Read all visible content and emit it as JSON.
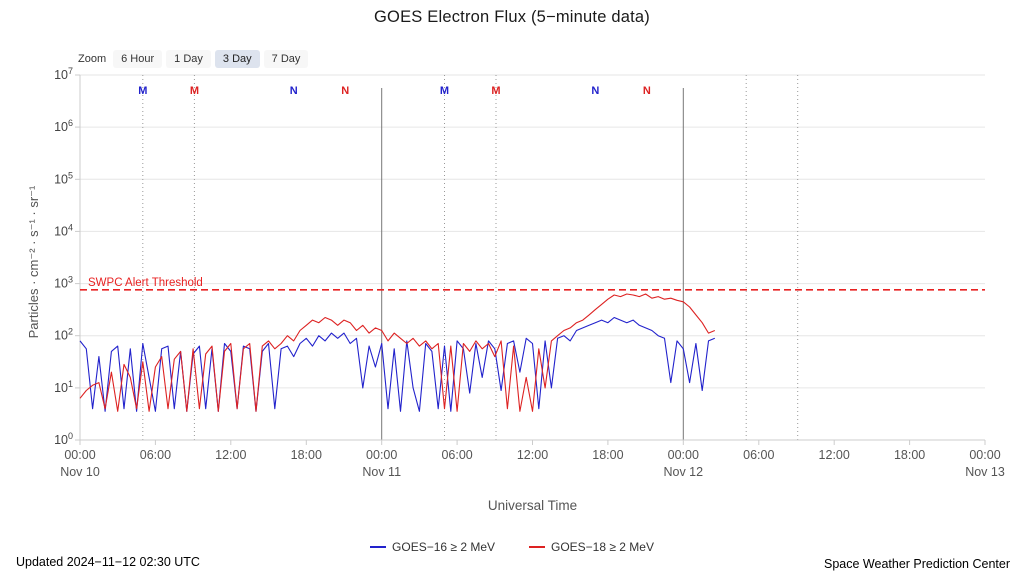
{
  "title": "GOES Electron Flux (5−minute data)",
  "zoom": {
    "label": "Zoom",
    "buttons": [
      {
        "label": "6 Hour",
        "active": false
      },
      {
        "label": "1 Day",
        "active": false
      },
      {
        "label": "3 Day",
        "active": true
      },
      {
        "label": "7 Day",
        "active": false
      }
    ]
  },
  "footer": {
    "updated": "Updated 2024−11−12 02:30 UTC",
    "source": "Space Weather Prediction Center"
  },
  "chart_data": {
    "type": "line",
    "title": "GOES Electron Flux (5−minute data)",
    "x_axis": {
      "label": "Universal Time",
      "unit": "hours since Nov 10 00:00 UTC",
      "range": [
        0,
        72
      ],
      "tick_interval_hours": 6,
      "tick_labels": [
        "00:00",
        "06:00",
        "12:00",
        "18:00",
        "00:00",
        "06:00",
        "12:00",
        "18:00",
        "00:00",
        "06:00",
        "12:00",
        "18:00",
        "00:00"
      ],
      "date_labels": [
        {
          "t": 0,
          "label": "Nov 10"
        },
        {
          "t": 24,
          "label": "Nov 11"
        },
        {
          "t": 48,
          "label": "Nov 12"
        },
        {
          "t": 72,
          "label": "Nov 13"
        }
      ]
    },
    "y_axis": {
      "label": "Particles · cm⁻² · s⁻¹ · sr⁻¹",
      "scale": "log10",
      "range_log10": [
        0,
        7
      ],
      "exponent_ticks": [
        0,
        1,
        2,
        3,
        4,
        5,
        6,
        7
      ],
      "grid": "horizontal decade gridlines on"
    },
    "threshold": {
      "label": "SWPC Alert Threshold",
      "log10_value": 2.88,
      "color": "#e82222"
    },
    "day_lines_t": [
      24,
      48
    ],
    "dotted_lines_t": [
      5,
      9.1,
      29,
      33.1,
      53,
      57.1
    ],
    "satellite_markers": [
      {
        "t": 5,
        "label": "M",
        "color": "#2222cc"
      },
      {
        "t": 9.1,
        "label": "M",
        "color": "#dd2222"
      },
      {
        "t": 17,
        "label": "N",
        "color": "#2222cc"
      },
      {
        "t": 21.1,
        "label": "N",
        "color": "#dd2222"
      },
      {
        "t": 29,
        "label": "M",
        "color": "#2222cc"
      },
      {
        "t": 33.1,
        "label": "M",
        "color": "#dd2222"
      },
      {
        "t": 41,
        "label": "N",
        "color": "#2222cc"
      },
      {
        "t": 45.1,
        "label": "N",
        "color": "#dd2222"
      }
    ],
    "legend_position": "bottom-center",
    "series": [
      {
        "name": "GOES−16 ≥ 2 MeV",
        "color": "#2222cc",
        "t0": 0,
        "dt": 0.5,
        "log10_values": [
          1.9,
          1.75,
          0.6,
          1.6,
          0.55,
          1.7,
          1.8,
          0.6,
          1.75,
          0.55,
          1.85,
          1.2,
          0.55,
          1.75,
          1.8,
          0.6,
          1.7,
          0.55,
          1.65,
          1.8,
          0.6,
          1.75,
          0.55,
          1.85,
          1.7,
          0.6,
          1.8,
          1.75,
          0.55,
          1.7,
          1.85,
          0.6,
          1.75,
          1.8,
          1.6,
          1.85,
          1.95,
          1.8,
          2.0,
          1.9,
          2.05,
          1.95,
          2.05,
          1.85,
          1.95,
          1.0,
          1.8,
          1.4,
          1.85,
          0.6,
          1.75,
          0.55,
          1.9,
          1.0,
          0.55,
          1.85,
          1.7,
          0.6,
          1.8,
          0.55,
          1.9,
          1.75,
          0.9,
          1.85,
          1.2,
          1.9,
          1.75,
          0.95,
          1.85,
          1.9,
          1.3,
          1.95,
          1.85,
          0.6,
          1.9,
          1.0,
          1.95,
          2.0,
          1.9,
          2.1,
          2.15,
          2.2,
          2.25,
          2.3,
          2.25,
          2.35,
          2.3,
          2.25,
          2.3,
          2.2,
          2.15,
          2.1,
          2.0,
          1.95,
          1.1,
          1.9,
          1.75,
          1.1,
          1.85,
          0.95,
          1.9,
          1.95
        ]
      },
      {
        "name": "GOES−18 ≥ 2 MeV",
        "color": "#dd2222",
        "t0": 0,
        "dt": 0.5,
        "log10_values": [
          0.8,
          0.95,
          1.05,
          1.1,
          0.6,
          1.3,
          0.55,
          1.45,
          1.2,
          0.6,
          1.5,
          0.55,
          1.4,
          1.6,
          0.6,
          1.55,
          1.7,
          0.55,
          1.75,
          0.6,
          1.65,
          1.8,
          0.55,
          1.7,
          1.85,
          0.6,
          1.75,
          1.85,
          0.55,
          1.8,
          1.9,
          1.75,
          1.85,
          2.0,
          1.9,
          2.1,
          2.2,
          2.3,
          2.25,
          2.35,
          2.3,
          2.2,
          2.3,
          2.25,
          2.1,
          2.2,
          2.05,
          2.15,
          2.1,
          1.9,
          2.05,
          1.95,
          1.85,
          1.95,
          1.8,
          1.9,
          1.75,
          1.85,
          0.6,
          1.8,
          0.55,
          1.85,
          1.7,
          1.9,
          1.75,
          1.85,
          1.6,
          1.9,
          0.6,
          1.8,
          0.55,
          1.2,
          0.55,
          1.75,
          1.0,
          1.9,
          2.0,
          2.1,
          2.15,
          2.25,
          2.3,
          2.4,
          2.5,
          2.6,
          2.7,
          2.78,
          2.75,
          2.8,
          2.78,
          2.75,
          2.8,
          2.72,
          2.75,
          2.7,
          2.72,
          2.68,
          2.65,
          2.55,
          2.4,
          2.25,
          2.05,
          2.1
        ]
      }
    ]
  }
}
